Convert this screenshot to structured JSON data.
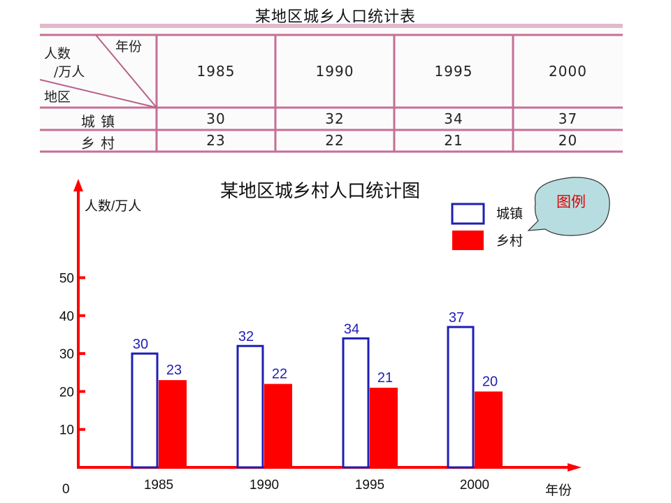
{
  "table": {
    "title": "某地区城乡人口统计表",
    "header_corner": {
      "top_right": "年份",
      "mid_left": "人数",
      "mid_left2": "/万人",
      "bottom_left": "地区"
    },
    "years": [
      "1985",
      "1990",
      "1995",
      "2000"
    ],
    "rows": [
      {
        "label": "城 镇",
        "values": [
          "30",
          "32",
          "34",
          "37"
        ]
      },
      {
        "label": "乡 村",
        "values": [
          "23",
          "22",
          "21",
          "20"
        ]
      }
    ]
  },
  "chart_data": {
    "type": "bar",
    "title": "某地区城乡村人口统计图",
    "ylabel": "人数/万人",
    "xlabel": "年份",
    "categories": [
      "1985",
      "1990",
      "1995",
      "2000"
    ],
    "series": [
      {
        "name": "城镇",
        "values": [
          30,
          32,
          34,
          37
        ],
        "color": "#1f1fb4",
        "style": "outline"
      },
      {
        "name": "乡村",
        "values": [
          23,
          22,
          21,
          20
        ],
        "color": "#ff0000",
        "style": "filled"
      }
    ],
    "yticks": [
      10,
      20,
      30,
      40,
      50
    ],
    "ylim": [
      0,
      50
    ],
    "origin_label": "0",
    "grid": false,
    "legend": {
      "position": "top-right",
      "callout": "图例"
    },
    "axis_color": "#ff0000"
  }
}
